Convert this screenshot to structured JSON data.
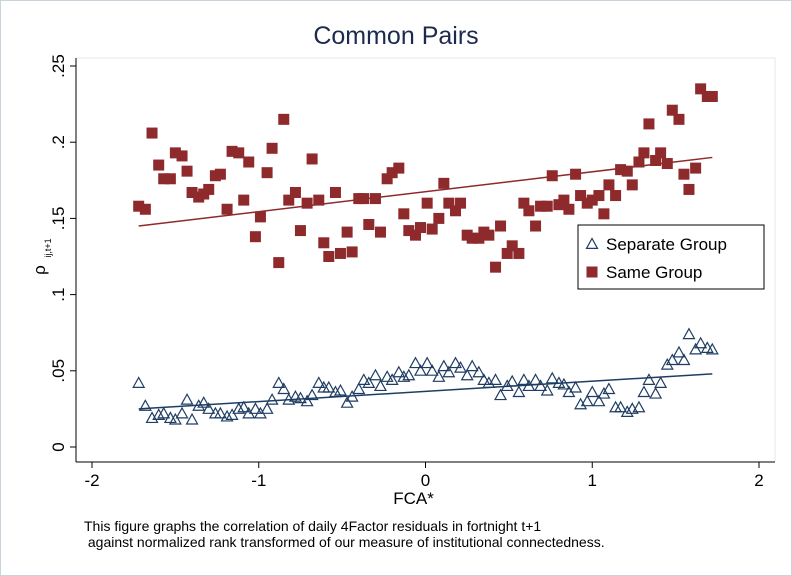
{
  "chart_data": {
    "type": "scatter",
    "title": "Common Pairs",
    "xlabel": "FCA*",
    "ylabel_main": "ρ",
    "ylabel_sub": "ij,t+1",
    "xlim": [
      -2,
      2
    ],
    "ylim": [
      0,
      0.25
    ],
    "x_ticks": [
      -2,
      -1,
      0,
      1,
      2
    ],
    "x_tick_labels": [
      "-2",
      "-1",
      "0",
      "1",
      "2"
    ],
    "y_ticks": [
      0,
      0.05,
      0.1,
      0.15,
      0.2,
      0.25
    ],
    "y_tick_labels": [
      "0",
      ".05",
      ".1",
      ".15",
      ".2",
      ".25"
    ],
    "grid": false,
    "legend_position": "right",
    "series": [
      {
        "name": "Separate Group",
        "marker": "triangle-hollow",
        "color": "#1f3d63",
        "x": [
          -1.72,
          -1.68,
          -1.64,
          -1.6,
          -1.57,
          -1.53,
          -1.5,
          -1.46,
          -1.43,
          -1.4,
          -1.36,
          -1.33,
          -1.3,
          -1.26,
          -1.23,
          -1.19,
          -1.16,
          -1.12,
          -1.09,
          -1.06,
          -1.02,
          -0.99,
          -0.95,
          -0.92,
          -0.88,
          -0.85,
          -0.82,
          -0.78,
          -0.75,
          -0.71,
          -0.68,
          -0.64,
          -0.61,
          -0.58,
          -0.54,
          -0.51,
          -0.47,
          -0.44,
          -0.4,
          -0.37,
          -0.34,
          -0.3,
          -0.27,
          -0.23,
          -0.2,
          -0.16,
          -0.13,
          -0.1,
          -0.06,
          -0.03,
          0.01,
          0.04,
          0.08,
          0.11,
          0.14,
          0.18,
          0.21,
          0.25,
          0.28,
          0.32,
          0.35,
          0.38,
          0.42,
          0.45,
          0.49,
          0.52,
          0.56,
          0.59,
          0.62,
          0.66,
          0.69,
          0.73,
          0.76,
          0.8,
          0.83,
          0.86,
          0.9,
          0.93,
          0.97,
          1.0,
          1.04,
          1.07,
          1.1,
          1.14,
          1.17,
          1.21,
          1.24,
          1.28,
          1.31,
          1.34,
          1.38,
          1.41,
          1.45,
          1.48,
          1.52,
          1.55,
          1.58,
          1.62,
          1.65,
          1.69,
          1.72
        ],
        "y": [
          0.042,
          0.027,
          0.019,
          0.021,
          0.022,
          0.019,
          0.018,
          0.022,
          0.031,
          0.018,
          0.027,
          0.029,
          0.025,
          0.022,
          0.022,
          0.02,
          0.021,
          0.025,
          0.026,
          0.022,
          0.025,
          0.022,
          0.025,
          0.031,
          0.042,
          0.038,
          0.031,
          0.033,
          0.032,
          0.03,
          0.034,
          0.042,
          0.039,
          0.039,
          0.036,
          0.037,
          0.029,
          0.033,
          0.038,
          0.044,
          0.042,
          0.047,
          0.04,
          0.046,
          0.044,
          0.049,
          0.046,
          0.047,
          0.055,
          0.05,
          0.055,
          0.05,
          0.046,
          0.053,
          0.049,
          0.055,
          0.052,
          0.047,
          0.053,
          0.049,
          0.044,
          0.042,
          0.044,
          0.034,
          0.04,
          0.043,
          0.036,
          0.044,
          0.04,
          0.044,
          0.04,
          0.037,
          0.045,
          0.042,
          0.041,
          0.036,
          0.039,
          0.028,
          0.03,
          0.036,
          0.03,
          0.035,
          0.038,
          0.026,
          0.026,
          0.023,
          0.025,
          0.026,
          0.036,
          0.044,
          0.035,
          0.042,
          0.054,
          0.057,
          0.062,
          0.057,
          0.074,
          0.064,
          0.068,
          0.065,
          0.064
        ],
        "fit": [
          [
            -1.72,
            0.025
          ],
          [
            1.72,
            0.048
          ]
        ]
      },
      {
        "name": "Same Group",
        "marker": "square-filled",
        "color": "#8e2a2c",
        "x": [
          -1.72,
          -1.68,
          -1.64,
          -1.6,
          -1.57,
          -1.53,
          -1.5,
          -1.46,
          -1.43,
          -1.4,
          -1.36,
          -1.33,
          -1.3,
          -1.26,
          -1.23,
          -1.19,
          -1.16,
          -1.12,
          -1.09,
          -1.06,
          -1.02,
          -0.99,
          -0.95,
          -0.92,
          -0.88,
          -0.85,
          -0.82,
          -0.78,
          -0.75,
          -0.71,
          -0.68,
          -0.64,
          -0.61,
          -0.58,
          -0.54,
          -0.51,
          -0.47,
          -0.44,
          -0.4,
          -0.37,
          -0.34,
          -0.3,
          -0.27,
          -0.23,
          -0.2,
          -0.16,
          -0.13,
          -0.1,
          -0.06,
          -0.03,
          0.01,
          0.04,
          0.08,
          0.11,
          0.14,
          0.18,
          0.21,
          0.25,
          0.28,
          0.32,
          0.35,
          0.38,
          0.42,
          0.45,
          0.49,
          0.52,
          0.56,
          0.59,
          0.62,
          0.66,
          0.69,
          0.73,
          0.76,
          0.8,
          0.83,
          0.86,
          0.9,
          0.93,
          0.97,
          1.0,
          1.04,
          1.07,
          1.1,
          1.14,
          1.17,
          1.21,
          1.24,
          1.28,
          1.31,
          1.34,
          1.38,
          1.41,
          1.45,
          1.48,
          1.52,
          1.55,
          1.58,
          1.62,
          1.65,
          1.69,
          1.72
        ],
        "y": [
          0.158,
          0.156,
          0.206,
          0.185,
          0.176,
          0.176,
          0.193,
          0.191,
          0.181,
          0.167,
          0.164,
          0.166,
          0.169,
          0.178,
          0.179,
          0.156,
          0.194,
          0.193,
          0.162,
          0.187,
          0.138,
          0.151,
          0.18,
          0.196,
          0.121,
          0.215,
          0.162,
          0.167,
          0.142,
          0.16,
          0.189,
          0.162,
          0.134,
          0.125,
          0.167,
          0.127,
          0.141,
          0.128,
          0.163,
          0.163,
          0.146,
          0.163,
          0.141,
          0.176,
          0.18,
          0.183,
          0.153,
          0.142,
          0.139,
          0.144,
          0.16,
          0.143,
          0.15,
          0.173,
          0.16,
          0.155,
          0.16,
          0.139,
          0.137,
          0.137,
          0.141,
          0.139,
          0.118,
          0.145,
          0.127,
          0.132,
          0.127,
          0.16,
          0.155,
          0.145,
          0.158,
          0.158,
          0.178,
          0.159,
          0.162,
          0.156,
          0.179,
          0.165,
          0.16,
          0.162,
          0.165,
          0.153,
          0.172,
          0.165,
          0.182,
          0.181,
          0.172,
          0.187,
          0.193,
          0.212,
          0.188,
          0.193,
          0.186,
          0.221,
          0.215,
          0.179,
          0.169,
          0.183,
          0.235,
          0.23,
          0.23
        ],
        "fit": [
          [
            -1.72,
            0.145
          ],
          [
            1.72,
            0.19
          ]
        ]
      }
    ]
  },
  "caption": {
    "line1": "This figure graphs the correlation of daily 4Factor residuals in fortnight t+1",
    "line2": " against normalized rank transformed of our measure of institutional connectedness."
  }
}
